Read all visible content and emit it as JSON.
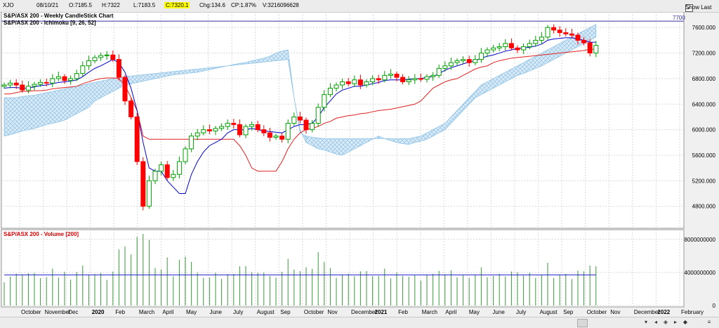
{
  "header": {
    "symbol": "XJO",
    "date": "08/10/21",
    "open": "O:7185.5",
    "high": "H:7322",
    "low": "L:7183.5",
    "close": "C:7320.1",
    "change": "Chg:134.6",
    "change_pct": "CP:1.87%",
    "volume": "V:3216096628",
    "show_last_label": "Show Last",
    "show_last_check": "✓"
  },
  "price_panel": {
    "title": "S&P/ASX 200 - Weekly CandleStick Chart",
    "indicator": "S&P/ASX 200 - Ichimoku [9, 26, 52]",
    "ref_line_label": "7700",
    "y_ticks": [
      "7600.000",
      "7200.000",
      "6800.000",
      "6400.000",
      "6000.000",
      "5600.000",
      "5200.000",
      "4800.000"
    ]
  },
  "volume_panel": {
    "title": "S&P/ASX 200 - Volume [200]",
    "y_ticks": [
      "8000000000",
      "4000000000",
      "0"
    ]
  },
  "x_axis": {
    "labels": [
      "October",
      "November",
      "Dec",
      "2020",
      "Feb",
      "March",
      "April",
      "May",
      "June",
      "July",
      "August",
      "Sep",
      "October",
      "Nov",
      "December",
      "2021",
      "Feb",
      "March",
      "April",
      "May",
      "June",
      "July",
      "August",
      "Sep",
      "October",
      "Nov",
      "December",
      "2022",
      "February"
    ],
    "bold": [
      "2020",
      "2021",
      "2022"
    ]
  },
  "chart_data": {
    "type": "candlestick",
    "y_range": [
      4500,
      7800
    ],
    "reference_line": 7700,
    "colors": {
      "up": "#00a000",
      "down": "#ff0000",
      "tenkan": "#0000cc",
      "kijun": "#e02020",
      "cloud_bull": "#8fc4e6",
      "cloud_bear": "#f0a0a0",
      "volume": "#3a9a3a",
      "volume_ma": "#2020cc"
    },
    "close": [
      6700,
      6730,
      6700,
      6620,
      6680,
      6710,
      6740,
      6730,
      6800,
      6830,
      6770,
      6800,
      6880,
      7000,
      7080,
      7130,
      7160,
      7170,
      7100,
      6820,
      6450,
      6200,
      5500,
      4800,
      5200,
      5350,
      5450,
      5250,
      5300,
      5500,
      5700,
      5900,
      5950,
      6000,
      5980,
      6020,
      6050,
      6100,
      6080,
      5920,
      6050,
      6080,
      6000,
      5950,
      5880,
      5900,
      5850,
      6100,
      6200,
      6150,
      6000,
      6100,
      6350,
      6550,
      6650,
      6700,
      6750,
      6720,
      6780,
      6700,
      6750,
      6800,
      6780,
      6850,
      6870,
      6820,
      6750,
      6780,
      6800,
      6790,
      6830,
      6850,
      6960,
      7000,
      7050,
      7080,
      7100,
      7050,
      7100,
      7200,
      7250,
      7280,
      7300,
      7350,
      7280,
      7250,
      7300,
      7350,
      7400,
      7450,
      7600,
      7560,
      7520,
      7500,
      7480,
      7400,
      7360,
      7200,
      7320
    ],
    "tenkan": [
      6650,
      6660,
      6660,
      6650,
      6650,
      6670,
      6690,
      6700,
      6720,
      6740,
      6750,
      6760,
      6780,
      6830,
      6900,
      6960,
      7000,
      7050,
      7100,
      7050,
      6900,
      6650,
      6300,
      5800,
      5400,
      5350,
      5350,
      5200,
      5100,
      5000,
      5000,
      5300,
      5500,
      5650,
      5750,
      5800,
      5850,
      5950,
      6000,
      6000,
      6000,
      6020,
      6000,
      5980,
      5970,
      5960,
      5950,
      6000,
      6050,
      6080,
      6080,
      6100,
      6200,
      6350,
      6450,
      6560,
      6620,
      6650,
      6680,
      6680,
      6700,
      6720,
      6740,
      6770,
      6780,
      6780,
      6780,
      6790,
      6800,
      6800,
      6820,
      6830,
      6880,
      6930,
      6970,
      7000,
      7030,
      7060,
      7080,
      7120,
      7150,
      7170,
      7200,
      7230,
      7250,
      7270,
      7280,
      7290,
      7310,
      7340,
      7400,
      7420,
      7430,
      7440,
      7440,
      7420,
      7400,
      7370,
      7370
    ],
    "kijun": [
      6560,
      6560,
      6580,
      6600,
      6600,
      6610,
      6610,
      6620,
      6640,
      6650,
      6660,
      6670,
      6680,
      6720,
      6750,
      6780,
      6800,
      6810,
      6810,
      6800,
      6700,
      6500,
      6300,
      5900,
      5850,
      5850,
      5850,
      5850,
      5850,
      5850,
      5850,
      5850,
      5850,
      5850,
      5850,
      5850,
      5850,
      5850,
      5850,
      5750,
      5600,
      5400,
      5350,
      5350,
      5350,
      5350,
      5500,
      5700,
      5850,
      5950,
      6000,
      6020,
      6050,
      6100,
      6130,
      6180,
      6200,
      6220,
      6230,
      6250,
      6260,
      6280,
      6300,
      6310,
      6320,
      6340,
      6360,
      6380,
      6400,
      6450,
      6550,
      6650,
      6700,
      6750,
      6780,
      6800,
      6850,
      6900,
      6950,
      6980,
      7000,
      7050,
      7080,
      7100,
      7120,
      7130,
      7140,
      7150,
      7160,
      7170,
      7180,
      7190,
      7200,
      7210,
      7220,
      7230,
      7240,
      7260,
      7260
    ],
    "cloud_a": [
      5900,
      5920,
      5950,
      5980,
      6000,
      6020,
      6050,
      6080,
      6100,
      6120,
      6150,
      6200,
      6250,
      6300,
      6350,
      6450,
      6500,
      6550,
      6600,
      6650,
      6700,
      6720,
      6740,
      6760,
      6780,
      6800,
      6820,
      6840,
      6860,
      6870,
      6880,
      6890,
      6900,
      6920,
      6940,
      6960,
      6980,
      7000,
      7020,
      7040,
      7050,
      7080,
      7100,
      7120,
      7150,
      7200,
      7230,
      7250,
      6500,
      6000,
      5800,
      5750,
      5700,
      5680,
      5650,
      5620,
      5600,
      5650,
      5700,
      5750,
      5800,
      5850,
      5900,
      5860,
      5830,
      5800,
      5780,
      5770,
      5800,
      5820,
      5850,
      5900,
      5950,
      6000,
      6100,
      6200,
      6300,
      6400,
      6500,
      6550,
      6600,
      6650,
      6700,
      6750,
      6800,
      6850,
      6880,
      6920,
      6960,
      7000,
      7050,
      7100,
      7150,
      7200,
      7250,
      7300,
      7350,
      7400,
      7450
    ],
    "cloud_b": [
      6500,
      6500,
      6500,
      6520,
      6530,
      6540,
      6560,
      6580,
      6600,
      6620,
      6640,
      6660,
      6680,
      6700,
      6720,
      6740,
      6760,
      6780,
      6800,
      6820,
      6830,
      6840,
      6850,
      6860,
      6870,
      6880,
      6890,
      6900,
      6910,
      6920,
      6930,
      6940,
      6950,
      6960,
      6970,
      6980,
      6990,
      7000,
      7010,
      7020,
      7030,
      7040,
      7050,
      7060,
      7070,
      7080,
      7090,
      7100,
      6500,
      5950,
      5900,
      5880,
      5870,
      5860,
      5860,
      5860,
      5860,
      5860,
      5860,
      5860,
      5860,
      5860,
      5860,
      5860,
      5860,
      5860,
      5860,
      5860,
      5880,
      5900,
      5950,
      6000,
      6050,
      6100,
      6200,
      6300,
      6400,
      6500,
      6600,
      6700,
      6750,
      6800,
      6850,
      6900,
      6950,
      7000,
      7050,
      7100,
      7150,
      7200,
      7250,
      7300,
      7350,
      7400,
      7450,
      7500,
      7550,
      7600,
      7650
    ],
    "volume_ma": 3700000000
  }
}
